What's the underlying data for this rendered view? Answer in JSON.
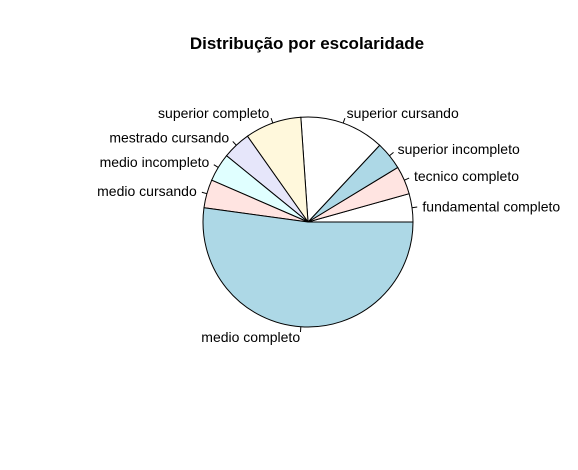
{
  "chart_data": {
    "type": "pie",
    "title": "Distribução por escolaridade",
    "slices": [
      {
        "label": "fundamental completo",
        "value": 2
      },
      {
        "label": "tecnico completo",
        "value": 2
      },
      {
        "label": "superior incompleto",
        "value": 2
      },
      {
        "label": "superior cursando",
        "value": 6
      },
      {
        "label": "superior completo",
        "value": 4
      },
      {
        "label": "mestrado cursando",
        "value": 2
      },
      {
        "label": "medio incompleto",
        "value": 2
      },
      {
        "label": "medio cursando",
        "value": 2
      },
      {
        "label": "medio completo",
        "value": 24
      }
    ],
    "colors": [
      "#ffffff",
      "#ffe4e1",
      "#add8e6",
      "#ffffff",
      "#fff8dc",
      "#e6e6fa",
      "#e0ffff",
      "#ffe4e1",
      "#add8e6"
    ],
    "border_color": "#000000",
    "start_angle_deg": 0,
    "direction": "counterclockwise"
  }
}
